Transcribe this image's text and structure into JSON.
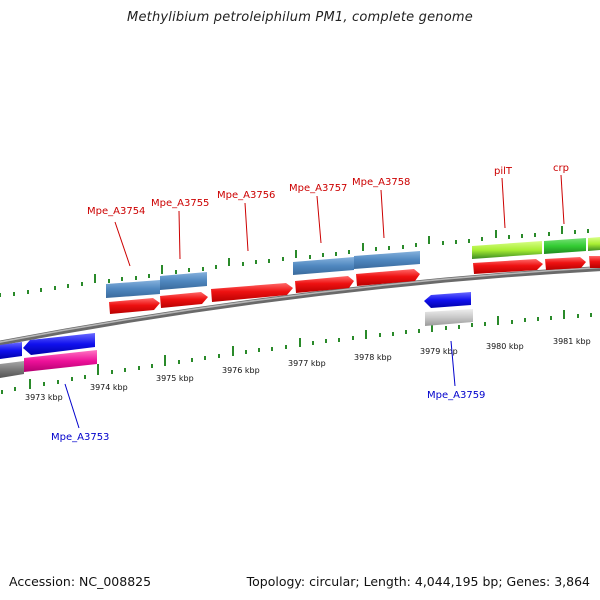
{
  "title": "Methylibium petroleiphilum PM1, complete genome",
  "footer": {
    "accession": "Accession: NC_008825",
    "summary": "Topology: circular; Length: 4,044,195 bp; Genes: 3,864"
  },
  "colors": {
    "backbone": "#8a8a8a",
    "tick": "#2a8a2a",
    "forward_label": "#cc0000",
    "reverse_label": "#0000cc",
    "cds_red": "#ee1111",
    "steelblue": "#4f87bf",
    "blue": "#1111ee",
    "magenta": "#ee1199",
    "gray": "#c8c8c8",
    "lime": "#a8ee33",
    "green": "#33cc33"
  },
  "kbp_ticks": [
    "3973 kbp",
    "3974 kbp",
    "3975 kbp",
    "3976 kbp",
    "3977 kbp",
    "3978 kbp",
    "3979 kbp",
    "3980 kbp",
    "3981 kbp"
  ],
  "forward_genes": [
    {
      "label": "Mpe_A3754"
    },
    {
      "label": "Mpe_A3755"
    },
    {
      "label": "Mpe_A3756"
    },
    {
      "label": "Mpe_A3757"
    },
    {
      "label": "Mpe_A3758"
    },
    {
      "label": "pilT"
    },
    {
      "label": "crp"
    }
  ],
  "reverse_genes": [
    {
      "label": "Mpe_A3753"
    },
    {
      "label": "Mpe_A3759"
    }
  ]
}
